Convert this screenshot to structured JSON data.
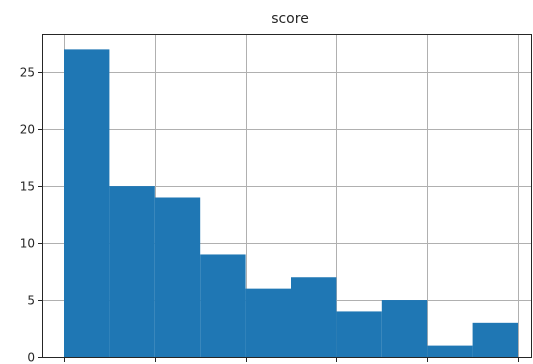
{
  "chart_data": {
    "type": "bar",
    "title": "score",
    "xlabel": "",
    "ylabel": "",
    "bins": 10,
    "values": [
      27,
      15,
      14,
      9,
      6,
      7,
      4,
      5,
      1,
      3
    ],
    "ylim": [
      0,
      28.35
    ],
    "yticks": [
      0,
      5,
      10,
      15,
      20,
      25
    ],
    "grid": true,
    "colors": {
      "bar": "#1f77b4",
      "grid": "#b0b0b0",
      "axis": "#262626",
      "background": "#ffffff"
    }
  }
}
